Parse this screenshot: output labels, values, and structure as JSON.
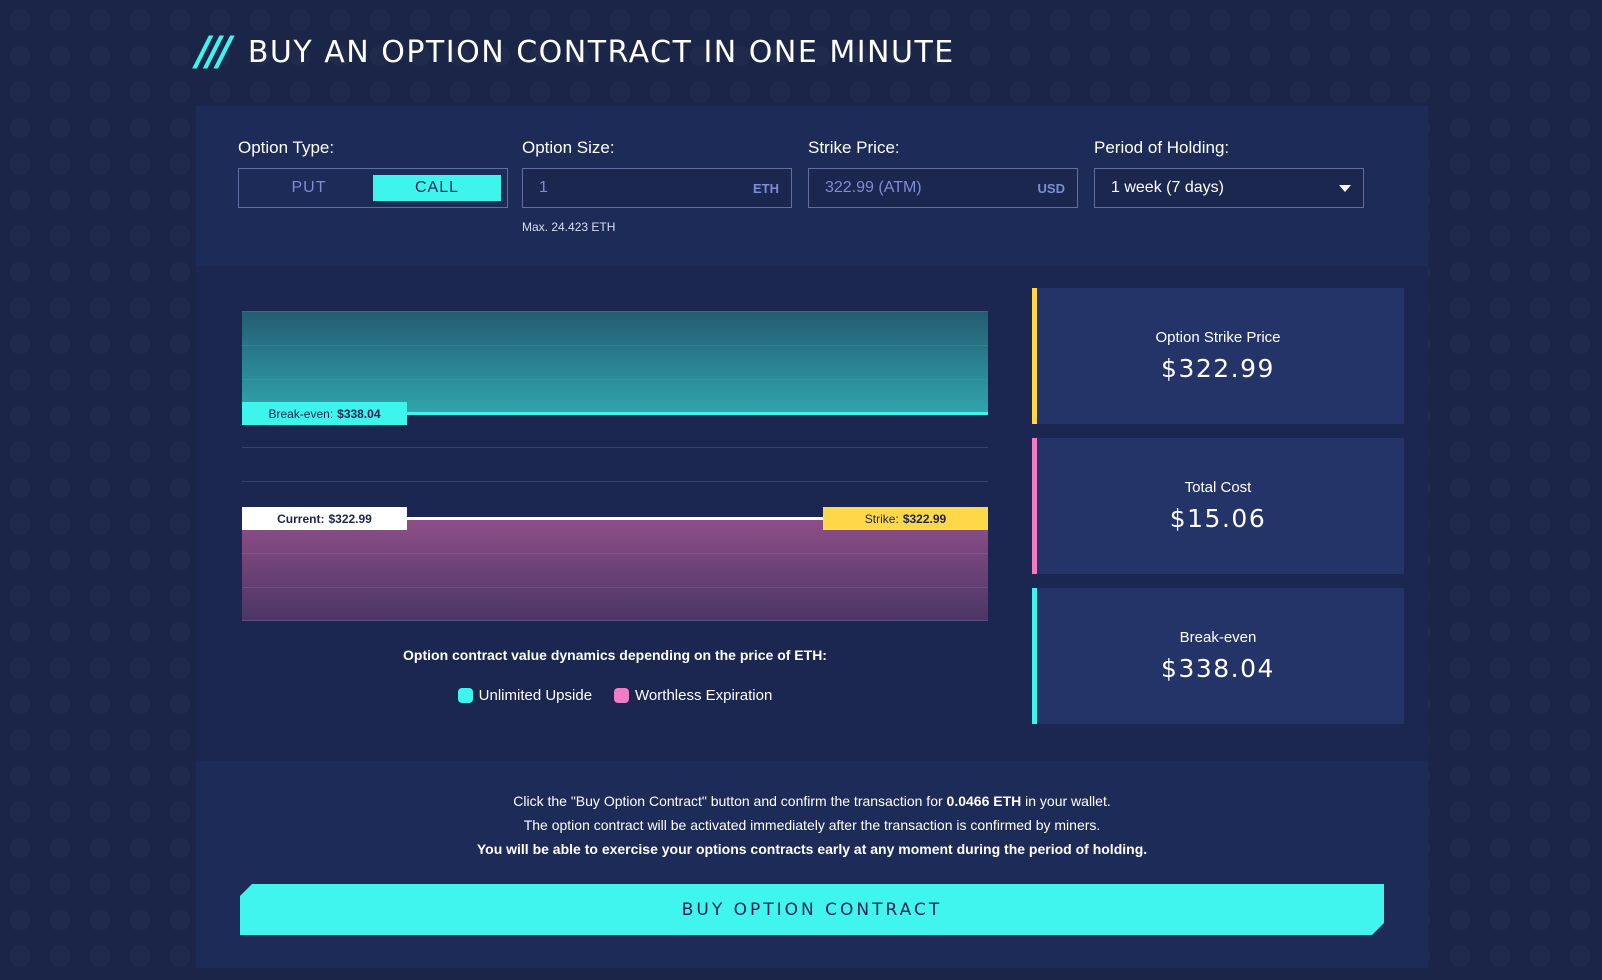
{
  "header": {
    "title": "BUY AN OPTION CONTRACT IN ONE MINUTE",
    "slashes": "///"
  },
  "controls": {
    "option_type": {
      "label": "Option Type:",
      "options": [
        "PUT",
        "CALL"
      ],
      "selected": "CALL"
    },
    "option_size": {
      "label": "Option Size:",
      "value": "1",
      "unit": "ETH",
      "hint": "Max. 24.423 ETH"
    },
    "strike_price": {
      "label": "Strike Price:",
      "value": "322.99 (ATM)",
      "unit": "USD"
    },
    "period": {
      "label": "Period of Holding:",
      "value": "1 week (7 days)"
    }
  },
  "chart": {
    "break_even_label": "Break-even:",
    "break_even_value": "$338.04",
    "current_label": "Current:",
    "current_value": "$322.99",
    "strike_label": "Strike:",
    "strike_value": "$322.99",
    "caption": "Option contract value dynamics depending on the price of ETH:",
    "legend": [
      {
        "label": "Unlimited Upside",
        "color": "#3ef5ee"
      },
      {
        "label": "Worthless Expiration",
        "color": "#f07cc3"
      }
    ]
  },
  "stats": [
    {
      "label": "Option Strike Price",
      "value": "$322.99",
      "accent": "#ffd84a"
    },
    {
      "label": "Total Cost",
      "value": "$15.06",
      "accent": "#f07cc3"
    },
    {
      "label": "Break-even",
      "value": "$338.04",
      "accent": "#3ef5ee"
    }
  ],
  "footer": {
    "line1_pre": "Click the \"Buy Option Contract\" button and confirm the transaction for ",
    "line1_amount": "0.0466 ETH",
    "line1_post": " in your wallet.",
    "line2": "The option contract will be activated immediately after the transaction is confirmed by miners.",
    "line3": "You will be able to exercise your options contracts early at any moment during the period of holding.",
    "button": "BUY OPTION CONTRACT"
  }
}
